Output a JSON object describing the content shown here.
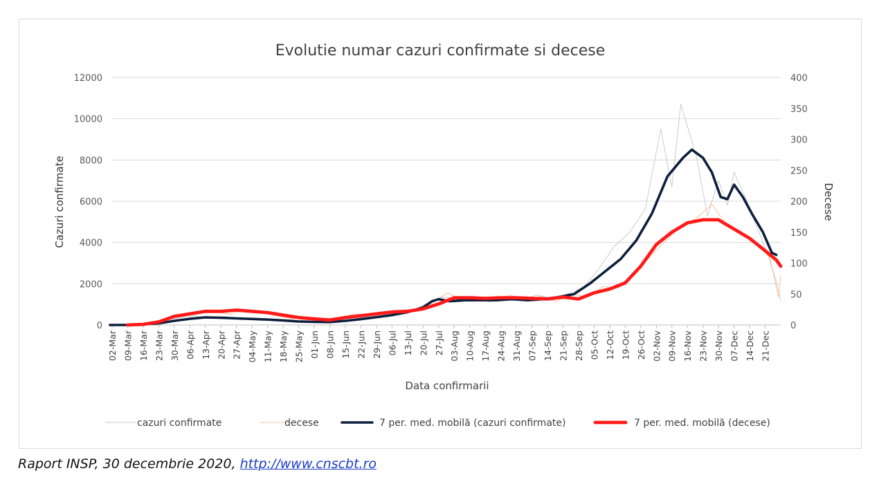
{
  "chart_data": {
    "type": "line",
    "title": "Evolutie numar cazuri confirmate si decese",
    "xlabel": "Data confirmarii",
    "ylabel": "Cazuri confirmate",
    "y2label": "Decese",
    "ylim": [
      0,
      12000
    ],
    "y2lim": [
      0,
      400
    ],
    "yticks": [
      "0",
      "2000",
      "4000",
      "6000",
      "8000",
      "10000",
      "12000"
    ],
    "y2ticks": [
      "0",
      "50",
      "100",
      "150",
      "200",
      "250",
      "300",
      "350",
      "400"
    ],
    "x_start": "2020-03-02",
    "x_end": "2020-12-28",
    "xtick_labels": [
      "02-Mar",
      "09-Mar",
      "16-Mar",
      "23-Mar",
      "30-Mar",
      "06-Apr",
      "13-Apr",
      "20-Apr",
      "27-Apr",
      "04-May",
      "11-May",
      "18-May",
      "25-May",
      "01-Jun",
      "08-Jun",
      "15-Jun",
      "22-Jun",
      "29-Jun",
      "06-Jul",
      "13-Jul",
      "20-Jul",
      "27-Jul",
      "03-Aug",
      "10-Aug",
      "17-Aug",
      "24-Aug",
      "31-Aug",
      "07-Sep",
      "14-Sep",
      "21-Sep",
      "28-Sep",
      "05-Oct",
      "12-Oct",
      "19-Oct",
      "26-Oct",
      "02-Nov",
      "09-Nov",
      "16-Nov",
      "23-Nov",
      "30-Nov",
      "07-Dec",
      "14-Dec",
      "21-Dec"
    ],
    "grid": true,
    "legend_position": "bottom",
    "series": [
      {
        "name": "cazuri confirmate",
        "axis": "left",
        "color": "#bfbfbf",
        "values": [
          [
            "2020-03-02",
            0
          ],
          [
            "2020-03-20",
            60
          ],
          [
            "2020-04-01",
            360
          ],
          [
            "2020-04-08",
            450
          ],
          [
            "2020-04-15",
            300
          ],
          [
            "2020-04-22",
            420
          ],
          [
            "2020-04-29",
            250
          ],
          [
            "2020-05-06",
            330
          ],
          [
            "2020-05-13",
            220
          ],
          [
            "2020-05-20",
            250
          ],
          [
            "2020-05-27",
            160
          ],
          [
            "2020-06-03",
            180
          ],
          [
            "2020-06-10",
            120
          ],
          [
            "2020-06-17",
            250
          ],
          [
            "2020-06-24",
            400
          ],
          [
            "2020-07-01",
            350
          ],
          [
            "2020-07-08",
            560
          ],
          [
            "2020-07-15",
            700
          ],
          [
            "2020-07-22",
            1050
          ],
          [
            "2020-07-29",
            1350
          ],
          [
            "2020-08-05",
            1250
          ],
          [
            "2020-08-12",
            1400
          ],
          [
            "2020-08-19",
            1100
          ],
          [
            "2020-08-26",
            1400
          ],
          [
            "2020-09-02",
            1200
          ],
          [
            "2020-09-09",
            1450
          ],
          [
            "2020-09-16",
            1300
          ],
          [
            "2020-09-23",
            1500
          ],
          [
            "2020-09-30",
            1800
          ],
          [
            "2020-10-07",
            2700
          ],
          [
            "2020-10-14",
            3800
          ],
          [
            "2020-10-21",
            4500
          ],
          [
            "2020-10-28",
            5600
          ],
          [
            "2020-11-04",
            9500
          ],
          [
            "2020-11-09",
            6700
          ],
          [
            "2020-11-13",
            10700
          ],
          [
            "2020-11-20",
            8200
          ],
          [
            "2020-11-25",
            5300
          ],
          [
            "2020-11-30",
            7000
          ],
          [
            "2020-12-04",
            5800
          ],
          [
            "2020-12-07",
            7400
          ],
          [
            "2020-12-12",
            6200
          ],
          [
            "2020-12-17",
            4800
          ],
          [
            "2020-12-22",
            3500
          ],
          [
            "2020-12-26",
            2100
          ],
          [
            "2020-12-28",
            1200
          ]
        ]
      },
      {
        "name": "decese",
        "axis": "right",
        "color": "#f4b183",
        "values": [
          [
            "2020-03-02",
            0
          ],
          [
            "2020-03-20",
            2
          ],
          [
            "2020-03-27",
            10
          ],
          [
            "2020-04-03",
            18
          ],
          [
            "2020-04-10",
            20
          ],
          [
            "2020-04-17",
            22
          ],
          [
            "2020-04-24",
            17
          ],
          [
            "2020-05-01",
            24
          ],
          [
            "2020-05-08",
            20
          ],
          [
            "2020-05-15",
            15
          ],
          [
            "2020-05-22",
            10
          ],
          [
            "2020-05-29",
            12
          ],
          [
            "2020-06-05",
            8
          ],
          [
            "2020-06-12",
            10
          ],
          [
            "2020-06-19",
            18
          ],
          [
            "2020-06-26",
            15
          ],
          [
            "2020-07-03",
            22
          ],
          [
            "2020-07-10",
            20
          ],
          [
            "2020-07-17",
            25
          ],
          [
            "2020-07-24",
            35
          ],
          [
            "2020-07-31",
            52
          ],
          [
            "2020-08-07",
            40
          ],
          [
            "2020-08-14",
            45
          ],
          [
            "2020-08-21",
            38
          ],
          [
            "2020-08-28",
            48
          ],
          [
            "2020-09-04",
            42
          ],
          [
            "2020-09-11",
            46
          ],
          [
            "2020-09-18",
            38
          ],
          [
            "2020-09-25",
            50
          ],
          [
            "2020-10-02",
            45
          ],
          [
            "2020-10-09",
            62
          ],
          [
            "2020-10-16",
            60
          ],
          [
            "2020-10-23",
            80
          ],
          [
            "2020-10-30",
            110
          ],
          [
            "2020-11-06",
            135
          ],
          [
            "2020-11-13",
            160
          ],
          [
            "2020-11-20",
            172
          ],
          [
            "2020-11-27",
            195
          ],
          [
            "2020-12-03",
            165
          ],
          [
            "2020-12-10",
            150
          ],
          [
            "2020-12-17",
            130
          ],
          [
            "2020-12-23",
            110
          ],
          [
            "2020-12-27",
            45
          ],
          [
            "2020-12-28",
            80
          ]
        ]
      },
      {
        "name": "7 per. med. mobilă (cazuri confirmate)",
        "axis": "left",
        "color": "#0d1f3c",
        "values": [
          [
            "2020-03-01",
            0
          ],
          [
            "2020-03-09",
            0
          ],
          [
            "2020-03-16",
            30
          ],
          [
            "2020-03-23",
            80
          ],
          [
            "2020-03-30",
            200
          ],
          [
            "2020-04-06",
            300
          ],
          [
            "2020-04-13",
            370
          ],
          [
            "2020-04-20",
            350
          ],
          [
            "2020-04-27",
            320
          ],
          [
            "2020-05-04",
            290
          ],
          [
            "2020-05-11",
            260
          ],
          [
            "2020-05-18",
            220
          ],
          [
            "2020-05-25",
            170
          ],
          [
            "2020-06-01",
            150
          ],
          [
            "2020-06-08",
            140
          ],
          [
            "2020-06-15",
            200
          ],
          [
            "2020-06-22",
            280
          ],
          [
            "2020-06-29",
            380
          ],
          [
            "2020-07-06",
            480
          ],
          [
            "2020-07-13",
            620
          ],
          [
            "2020-07-20",
            850
          ],
          [
            "2020-07-24",
            1150
          ],
          [
            "2020-07-27",
            1250
          ],
          [
            "2020-08-01",
            1150
          ],
          [
            "2020-08-08",
            1200
          ],
          [
            "2020-08-15",
            1200
          ],
          [
            "2020-08-22",
            1200
          ],
          [
            "2020-08-29",
            1250
          ],
          [
            "2020-09-05",
            1200
          ],
          [
            "2020-09-12",
            1250
          ],
          [
            "2020-09-19",
            1350
          ],
          [
            "2020-09-26",
            1500
          ],
          [
            "2020-10-03",
            2000
          ],
          [
            "2020-10-10",
            2600
          ],
          [
            "2020-10-17",
            3200
          ],
          [
            "2020-10-24",
            4100
          ],
          [
            "2020-10-31",
            5400
          ],
          [
            "2020-11-07",
            7200
          ],
          [
            "2020-11-14",
            8100
          ],
          [
            "2020-11-18",
            8500
          ],
          [
            "2020-11-23",
            8100
          ],
          [
            "2020-11-27",
            7400
          ],
          [
            "2020-12-01",
            6200
          ],
          [
            "2020-12-04",
            6100
          ],
          [
            "2020-12-07",
            6800
          ],
          [
            "2020-12-11",
            6200
          ],
          [
            "2020-12-15",
            5400
          ],
          [
            "2020-12-20",
            4500
          ],
          [
            "2020-12-24",
            3500
          ],
          [
            "2020-12-26",
            3400
          ]
        ]
      },
      {
        "name": "7 per. med. mobilă (decese)",
        "axis": "right",
        "color": "#ff1a1a",
        "values": [
          [
            "2020-03-09",
            0
          ],
          [
            "2020-03-16",
            1
          ],
          [
            "2020-03-23",
            5
          ],
          [
            "2020-03-30",
            14
          ],
          [
            "2020-04-06",
            18
          ],
          [
            "2020-04-13",
            22
          ],
          [
            "2020-04-20",
            22
          ],
          [
            "2020-04-27",
            24
          ],
          [
            "2020-05-04",
            22
          ],
          [
            "2020-05-11",
            20
          ],
          [
            "2020-05-18",
            16
          ],
          [
            "2020-05-25",
            12
          ],
          [
            "2020-06-01",
            10
          ],
          [
            "2020-06-08",
            8
          ],
          [
            "2020-06-15",
            12
          ],
          [
            "2020-06-22",
            15
          ],
          [
            "2020-06-29",
            18
          ],
          [
            "2020-07-06",
            21
          ],
          [
            "2020-07-13",
            22
          ],
          [
            "2020-07-20",
            26
          ],
          [
            "2020-07-27",
            34
          ],
          [
            "2020-08-03",
            44
          ],
          [
            "2020-08-10",
            44
          ],
          [
            "2020-08-17",
            43
          ],
          [
            "2020-08-24",
            44
          ],
          [
            "2020-08-31",
            44
          ],
          [
            "2020-09-07",
            43
          ],
          [
            "2020-09-14",
            42
          ],
          [
            "2020-09-21",
            45
          ],
          [
            "2020-09-28",
            42
          ],
          [
            "2020-10-05",
            52
          ],
          [
            "2020-10-12",
            58
          ],
          [
            "2020-10-19",
            68
          ],
          [
            "2020-10-26",
            95
          ],
          [
            "2020-11-02",
            130
          ],
          [
            "2020-11-09",
            150
          ],
          [
            "2020-11-16",
            165
          ],
          [
            "2020-11-23",
            170
          ],
          [
            "2020-11-30",
            170
          ],
          [
            "2020-12-07",
            155
          ],
          [
            "2020-12-14",
            140
          ],
          [
            "2020-12-21",
            120
          ],
          [
            "2020-12-26",
            105
          ],
          [
            "2020-12-28",
            95
          ]
        ]
      }
    ]
  },
  "caption": {
    "text": "Raport INSP, 30 decembrie 2020, ",
    "link_text": "http://www.cnscbt.ro"
  }
}
